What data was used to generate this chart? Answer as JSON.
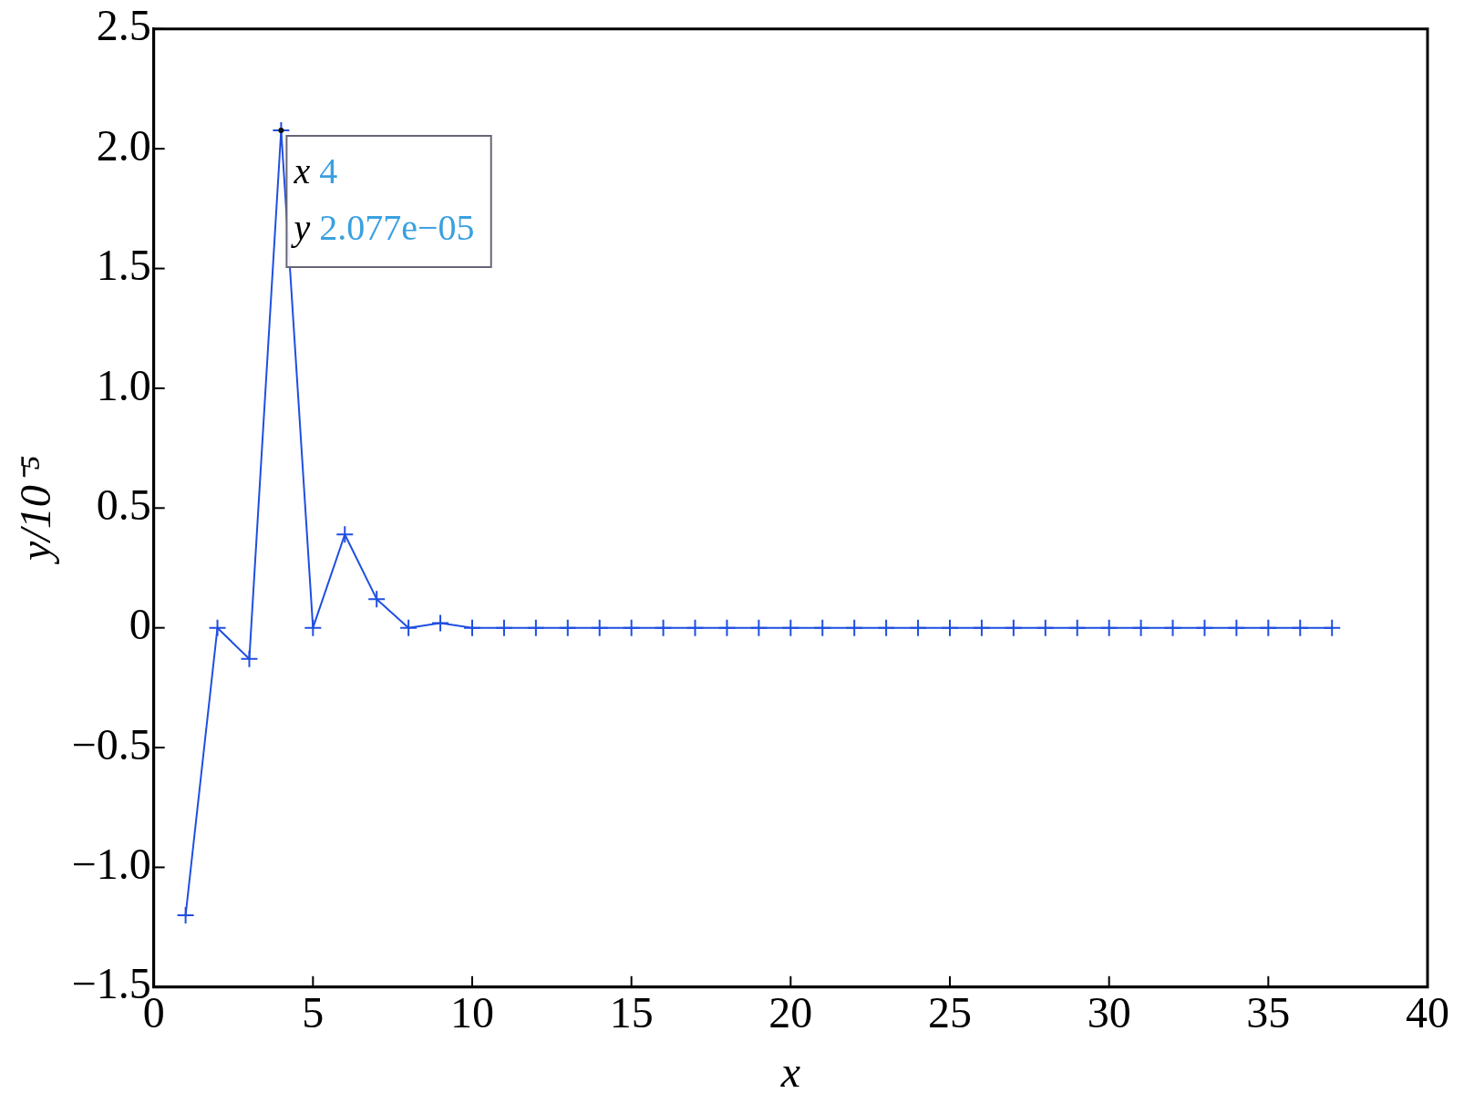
{
  "chart_data": {
    "type": "line",
    "xlabel": "x",
    "ylabel": "y/10⁻⁵",
    "x": [
      1,
      2,
      3,
      4,
      5,
      6,
      7,
      8,
      9,
      10,
      11,
      12,
      13,
      14,
      15,
      16,
      17,
      18,
      19,
      20,
      21,
      22,
      23,
      24,
      25,
      26,
      27,
      28,
      29,
      30,
      31,
      32,
      33,
      34,
      35,
      36,
      37
    ],
    "series": [
      {
        "color": "#1f4fe0",
        "values": [
          -1.2,
          0,
          -0.13,
          2.077,
          0,
          0.39,
          0.12,
          0,
          0.02,
          0,
          0,
          0,
          0,
          0,
          0,
          0,
          0,
          0,
          0,
          0,
          0,
          0,
          0,
          0,
          0,
          0,
          0,
          0,
          0,
          0,
          0,
          0,
          0,
          0,
          0,
          0,
          0
        ]
      }
    ],
    "xlim": [
      0,
      40
    ],
    "xticks": [
      0,
      5,
      10,
      15,
      20,
      25,
      30,
      35,
      40
    ],
    "ylim": [
      -1.5,
      2.5
    ],
    "yticks": [
      {
        "value": -1.5,
        "label": "−1.5"
      },
      {
        "value": -1,
        "label": "−1.0"
      },
      {
        "value": -0.5,
        "label": "−0.5"
      },
      0,
      0.5,
      {
        "value": 1,
        "label": "1.0"
      },
      1.5,
      {
        "value": 2,
        "label": "2.0"
      },
      2.5
    ],
    "marker": "cross",
    "line_style": "solid",
    "grid": false,
    "legend": false,
    "annotations": [
      {
        "text": "x 4\ny 2.077e−05",
        "x": 4,
        "y": 2.077
      }
    ]
  }
}
